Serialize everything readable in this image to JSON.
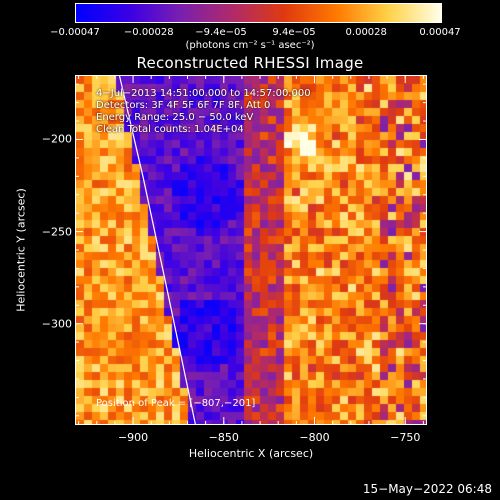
{
  "chart_data": {
    "type": "heatmap",
    "title": "Reconstructed RHESSI Image",
    "xlabel": "Heliocentric X (arcsec)",
    "ylabel": "Heliocentric Y (arcsec)",
    "xlim": [
      -932,
      -738
    ],
    "ylim": [
      -355,
      -165
    ],
    "x_ticks": [
      -900,
      -850,
      -800,
      -750
    ],
    "x_tick_labels": [
      "−900",
      "−850",
      "−800",
      "−750"
    ],
    "y_ticks": [
      -200,
      -250,
      -300
    ],
    "y_tick_labels": [
      "−200",
      "−250",
      "−300"
    ],
    "colorbar": {
      "range": [
        -0.00047,
        0.00047
      ],
      "tick_values": [
        -0.00047,
        -0.00028,
        -9.4e-05,
        9.4e-05,
        0.00028,
        0.00047
      ],
      "tick_labels": [
        "−0.00047",
        "−0.00028",
        "−9.4e−05",
        "9.4e−05",
        "0.00028",
        "0.00047"
      ],
      "units": "(photons cm⁻² s⁻¹ asec⁻²)",
      "colors": [
        "#0000ff",
        "#3a00e6",
        "#7a1fb0",
        "#b02a6a",
        "#e03a10",
        "#ff7a00",
        "#ffd24a",
        "#ffffe6"
      ]
    },
    "info_lines": [
      "4−Jul−2013 14:51:00.000 to 14:57:00.000",
      "Detectors: 3F 4F 5F 6F 7F 8F, Att 0",
      "Energy Range: 25.0 − 50.0 keV",
      "Clean    Total counts: 1.04E+04"
    ],
    "peak_text": "Position of Peak = [−807,−201]",
    "peak": [
      -807,
      -201
    ],
    "limb_curve": [
      [
        -908,
        -165
      ],
      [
        -895,
        -220
      ],
      [
        -882,
        -280
      ],
      [
        -866,
        -355
      ]
    ]
  },
  "timestamp": "15−May−2022 06:48"
}
